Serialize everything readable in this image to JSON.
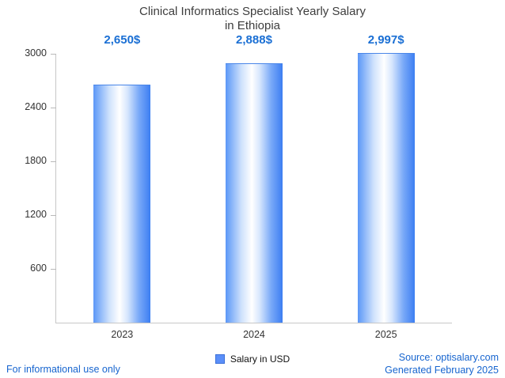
{
  "chart_data": {
    "type": "bar",
    "title": "Clinical Informatics Specialist Yearly Salary in Ethiopia",
    "title_lines": [
      "Clinical Informatics Specialist Yearly Salary",
      "in Ethiopia"
    ],
    "categories": [
      "2023",
      "2024",
      "2025"
    ],
    "values": [
      2650,
      2888,
      2997
    ],
    "value_labels": [
      "2,650$",
      "2,888$",
      "2,997$"
    ],
    "xlabel": "",
    "ylabel": "",
    "ylim": [
      0,
      3000
    ],
    "yticks": [
      600,
      1200,
      1800,
      2400,
      3000
    ],
    "grid": false,
    "legend": {
      "label": "Salary in USD",
      "position": "bottom-center",
      "marker_color": "#5b8ff9"
    },
    "bar_gradient": [
      "#5b97f7",
      "#ffffff",
      "#3c7ef2"
    ],
    "accent_color": "#1a6fd4"
  },
  "footer": {
    "disclaimer": "For informational use only",
    "source": "Source: optisalary.com",
    "generated": "Generated February 2025",
    "link_color": "#1765cf"
  }
}
